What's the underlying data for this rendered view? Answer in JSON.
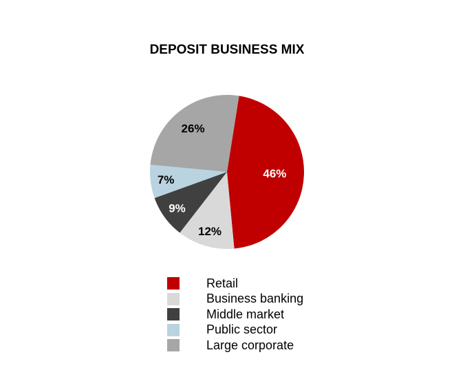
{
  "chart_data": {
    "type": "pie",
    "title": "DEPOSIT BUSINESS MIX",
    "slices": [
      {
        "label": "Retail",
        "value": 46,
        "display": "46%",
        "color": "#C00000",
        "label_color": "#FFFFFF"
      },
      {
        "label": "Business banking",
        "value": 12,
        "display": "12%",
        "color": "#D9D9D9",
        "label_color": "#000000"
      },
      {
        "label": "Middle market",
        "value": 9,
        "display": "9%",
        "color": "#404040",
        "label_color": "#FFFFFF"
      },
      {
        "label": "Public sector",
        "value": 7,
        "display": "7%",
        "color": "#B9D3E0",
        "label_color": "#000000"
      },
      {
        "label": "Large corporate",
        "value": 26,
        "display": "26%",
        "color": "#A6A6A6",
        "label_color": "#000000"
      }
    ],
    "legend_position": "bottom"
  }
}
